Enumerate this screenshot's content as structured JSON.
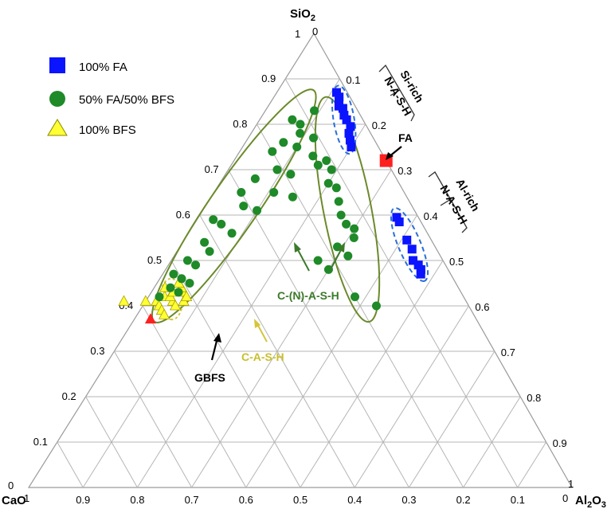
{
  "chart_data": {
    "type": "scatter",
    "subtype": "ternary",
    "vertices": {
      "top": "SiO2",
      "bottom_left": "CaO",
      "bottom_right": "Al2O3"
    },
    "vertex_labels": {
      "top": {
        "main": "SiO",
        "sub": "2"
      },
      "bottom_left": {
        "main": "CaO",
        "sub": ""
      },
      "bottom_right": {
        "main": "Al",
        "sub": "2",
        "main2": "O",
        "sub2": "3"
      }
    },
    "corner_ticks": {
      "top_left": "1",
      "top_right": "0",
      "bl_top": "0",
      "bl_right": "1",
      "br_top": "1",
      "br_left": "0"
    },
    "ticks": {
      "sio2": [
        "0.1",
        "0.2",
        "0.3",
        "0.4",
        "0.5",
        "0.6",
        "0.7",
        "0.8",
        "0.9"
      ],
      "cao": [
        "0.9",
        "0.8",
        "0.7",
        "0.6",
        "0.5",
        "0.4",
        "0.3",
        "0.2",
        "0.1"
      ],
      "al2o3": [
        "0.1",
        "0.2",
        "0.3",
        "0.4",
        "0.5",
        "0.6",
        "0.7",
        "0.8",
        "0.9"
      ]
    },
    "grid": true,
    "legend": {
      "placement": "top-left",
      "items": [
        {
          "label": "100% FA",
          "marker": "square",
          "color": "#0a14ff"
        },
        {
          "label": "50% FA/50% BFS",
          "marker": "circle",
          "color": "#1e8a28"
        },
        {
          "label": "100% BFS",
          "marker": "triangle",
          "color": "#ffff33"
        }
      ]
    },
    "series": [
      {
        "name": "100% FA",
        "marker": "square",
        "color": "#0a14ff",
        "points": [
          {
            "sio2": 0.87,
            "al2o3": 0.11
          },
          {
            "sio2": 0.86,
            "al2o3": 0.12
          },
          {
            "sio2": 0.85,
            "al2o3": 0.125
          },
          {
            "sio2": 0.84,
            "al2o3": 0.13
          },
          {
            "sio2": 0.835,
            "al2o3": 0.14
          },
          {
            "sio2": 0.82,
            "al2o3": 0.15
          },
          {
            "sio2": 0.81,
            "al2o3": 0.16
          },
          {
            "sio2": 0.795,
            "al2o3": 0.175
          },
          {
            "sio2": 0.78,
            "al2o3": 0.18
          },
          {
            "sio2": 0.765,
            "al2o3": 0.19
          },
          {
            "sio2": 0.75,
            "al2o3": 0.2
          },
          {
            "sio2": 0.595,
            "al2o3": 0.365
          },
          {
            "sio2": 0.585,
            "al2o3": 0.375
          },
          {
            "sio2": 0.545,
            "al2o3": 0.41
          },
          {
            "sio2": 0.525,
            "al2o3": 0.43
          },
          {
            "sio2": 0.5,
            "al2o3": 0.445
          },
          {
            "sio2": 0.49,
            "al2o3": 0.46
          },
          {
            "sio2": 0.48,
            "al2o3": 0.47
          },
          {
            "sio2": 0.47,
            "al2o3": 0.475
          }
        ]
      },
      {
        "name": "50% FA/50% BFS",
        "marker": "circle",
        "color": "#1e8a28",
        "points": [
          {
            "sio2": 0.83,
            "al2o3": 0.09
          },
          {
            "sio2": 0.81,
            "al2o3": 0.06
          },
          {
            "sio2": 0.8,
            "al2o3": 0.08
          },
          {
            "sio2": 0.78,
            "al2o3": 0.09
          },
          {
            "sio2": 0.77,
            "al2o3": 0.12
          },
          {
            "sio2": 0.76,
            "al2o3": 0.07
          },
          {
            "sio2": 0.75,
            "al2o3": 0.1
          },
          {
            "sio2": 0.74,
            "al2o3": 0.06
          },
          {
            "sio2": 0.73,
            "al2o3": 0.14
          },
          {
            "sio2": 0.72,
            "al2o3": 0.17
          },
          {
            "sio2": 0.71,
            "al2o3": 0.16
          },
          {
            "sio2": 0.7,
            "al2o3": 0.09
          },
          {
            "sio2": 0.7,
            "al2o3": 0.19
          },
          {
            "sio2": 0.69,
            "al2o3": 0.12
          },
          {
            "sio2": 0.68,
            "al2o3": 0.06
          },
          {
            "sio2": 0.67,
            "al2o3": 0.2
          },
          {
            "sio2": 0.66,
            "al2o3": 0.22
          },
          {
            "sio2": 0.65,
            "al2o3": 0.05
          },
          {
            "sio2": 0.65,
            "al2o3": 0.11
          },
          {
            "sio2": 0.64,
            "al2o3": 0.15
          },
          {
            "sio2": 0.63,
            "al2o3": 0.24
          },
          {
            "sio2": 0.62,
            "al2o3": 0.07
          },
          {
            "sio2": 0.61,
            "al2o3": 0.1
          },
          {
            "sio2": 0.6,
            "al2o3": 0.26
          },
          {
            "sio2": 0.59,
            "al2o3": 0.03
          },
          {
            "sio2": 0.58,
            "al2o3": 0.05
          },
          {
            "sio2": 0.58,
            "al2o3": 0.28
          },
          {
            "sio2": 0.57,
            "al2o3": 0.3
          },
          {
            "sio2": 0.56,
            "al2o3": 0.08
          },
          {
            "sio2": 0.55,
            "al2o3": 0.31
          },
          {
            "sio2": 0.54,
            "al2o3": 0.04
          },
          {
            "sio2": 0.53,
            "al2o3": 0.29
          },
          {
            "sio2": 0.52,
            "al2o3": 0.06
          },
          {
            "sio2": 0.51,
            "al2o3": 0.32
          },
          {
            "sio2": 0.5,
            "al2o3": 0.03
          },
          {
            "sio2": 0.5,
            "al2o3": 0.27
          },
          {
            "sio2": 0.49,
            "al2o3": 0.05
          },
          {
            "sio2": 0.48,
            "al2o3": 0.3
          },
          {
            "sio2": 0.47,
            "al2o3": 0.02
          },
          {
            "sio2": 0.46,
            "al2o3": 0.04
          },
          {
            "sio2": 0.45,
            "al2o3": 0.06
          },
          {
            "sio2": 0.44,
            "al2o3": 0.03
          },
          {
            "sio2": 0.43,
            "al2o3": 0.05
          },
          {
            "sio2": 0.42,
            "al2o3": 0.38
          },
          {
            "sio2": 0.42,
            "al2o3": 0.02
          },
          {
            "sio2": 0.4,
            "al2o3": 0.43
          }
        ]
      },
      {
        "name": "100% BFS",
        "marker": "triangle",
        "color": "#ffff33",
        "points": [
          {
            "sio2": 0.41,
            "al2o3": 0.02
          },
          {
            "sio2": 0.41,
            "al2o3": 0.05
          },
          {
            "sio2": 0.42,
            "al2o3": 0.03
          },
          {
            "sio2": 0.42,
            "al2o3": 0.04
          },
          {
            "sio2": 0.43,
            "al2o3": 0.04
          },
          {
            "sio2": 0.43,
            "al2o3": 0.06
          },
          {
            "sio2": 0.44,
            "al2o3": 0.05
          },
          {
            "sio2": 0.4,
            "al2o3": 0.03
          },
          {
            "sio2": 0.4,
            "al2o3": 0.06
          },
          {
            "sio2": 0.41,
            "al2o3": 0.07
          },
          {
            "sio2": 0.39,
            "al2o3": 0.04
          },
          {
            "sio2": 0.45,
            "al2o3": 0.04
          },
          {
            "sio2": 0.44,
            "al2o3": 0.02
          },
          {
            "sio2": 0.42,
            "al2o3": 0.07
          },
          {
            "sio2": 0.38,
            "al2o3": 0.05
          },
          {
            "sio2": 0.41,
            "al2o3": -0.04
          },
          {
            "sio2": 0.41,
            "al2o3": 0.0
          }
        ]
      }
    ],
    "reference_points": [
      {
        "label": "FA",
        "marker": "square",
        "color": "#ff2020",
        "sio2": 0.72,
        "al2o3": 0.28
      },
      {
        "label": "GBFS",
        "marker": "triangle",
        "color": "#ff2020",
        "sio2": 0.37,
        "al2o3": 0.03
      }
    ],
    "regions": [
      {
        "label": "C-(N)-A-S-H",
        "color": "#6b8a2a"
      },
      {
        "label": "C-A-S-H",
        "color": "#d4c63a"
      },
      {
        "label_line1": "Si-rich",
        "label_line2": "N-A-S-H",
        "color": "#2a6fd6"
      },
      {
        "label_line1": "Al-rich",
        "label_line2": "N-A-S-H",
        "color": "#2a6fd6"
      }
    ]
  }
}
